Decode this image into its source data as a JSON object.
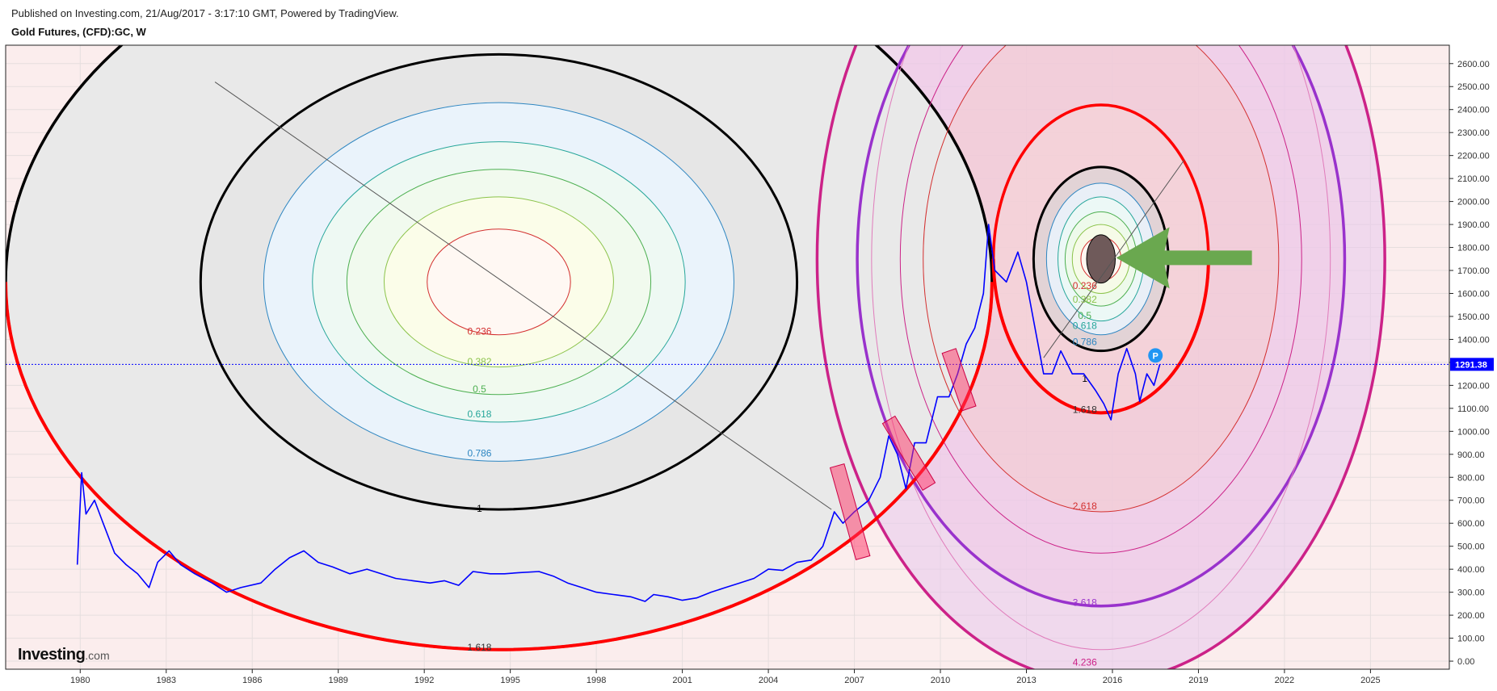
{
  "header": {
    "published": "Published on Investing.com, 21/Aug/2017 - 3:17:10 GMT, Powered by TradingView.",
    "title": "Gold Futures, (CFD):GC, W"
  },
  "logo": {
    "name": "Investing",
    "suffix": ".com"
  },
  "colors": {
    "price_line": "#0000ff",
    "arc_red": "#ff0000",
    "arc_black": "#000000",
    "arc_purple": "#9932cc",
    "arc_magenta": "#cc2288",
    "arrow_green": "#6aa84f",
    "last_price_bg": "#0000ff",
    "marker_blue": "#2196f3"
  },
  "chart_data": {
    "type": "line",
    "series": [
      {
        "points": [
          [
            1979.9,
            420
          ],
          [
            1980.05,
            820
          ],
          [
            1980.2,
            640
          ],
          [
            1980.5,
            700
          ],
          [
            1980.8,
            600
          ],
          [
            1981.2,
            470
          ],
          [
            1981.6,
            420
          ],
          [
            1982.0,
            380
          ],
          [
            1982.4,
            320
          ],
          [
            1982.7,
            430
          ],
          [
            1983.1,
            480
          ],
          [
            1983.5,
            420
          ],
          [
            1984.0,
            380
          ],
          [
            1984.6,
            340
          ],
          [
            1985.1,
            300
          ],
          [
            1985.6,
            320
          ],
          [
            1986.3,
            340
          ],
          [
            1986.8,
            400
          ],
          [
            1987.3,
            450
          ],
          [
            1987.8,
            480
          ],
          [
            1988.3,
            430
          ],
          [
            1988.8,
            410
          ],
          [
            1989.4,
            380
          ],
          [
            1990.0,
            400
          ],
          [
            1990.5,
            380
          ],
          [
            1991.0,
            360
          ],
          [
            1991.6,
            350
          ],
          [
            1992.2,
            340
          ],
          [
            1992.7,
            350
          ],
          [
            1993.2,
            330
          ],
          [
            1993.7,
            390
          ],
          [
            1994.3,
            380
          ],
          [
            1994.8,
            380
          ],
          [
            1995.3,
            385
          ],
          [
            1996.0,
            390
          ],
          [
            1996.5,
            370
          ],
          [
            1997.0,
            340
          ],
          [
            1997.5,
            320
          ],
          [
            1998.0,
            300
          ],
          [
            1998.6,
            290
          ],
          [
            1999.2,
            280
          ],
          [
            1999.7,
            260
          ],
          [
            2000.0,
            290
          ],
          [
            2000.5,
            280
          ],
          [
            2001.0,
            265
          ],
          [
            2001.5,
            275
          ],
          [
            2002.0,
            300
          ],
          [
            2002.5,
            320
          ],
          [
            2003.0,
            340
          ],
          [
            2003.5,
            360
          ],
          [
            2004.0,
            400
          ],
          [
            2004.5,
            395
          ],
          [
            2005.0,
            430
          ],
          [
            2005.5,
            440
          ],
          [
            2005.9,
            500
          ],
          [
            2006.3,
            650
          ],
          [
            2006.6,
            600
          ],
          [
            2007.0,
            650
          ],
          [
            2007.5,
            700
          ],
          [
            2007.9,
            800
          ],
          [
            2008.2,
            980
          ],
          [
            2008.5,
            900
          ],
          [
            2008.8,
            750
          ],
          [
            2009.1,
            950
          ],
          [
            2009.5,
            950
          ],
          [
            2009.9,
            1150
          ],
          [
            2010.3,
            1150
          ],
          [
            2010.6,
            1250
          ],
          [
            2010.9,
            1380
          ],
          [
            2011.2,
            1450
          ],
          [
            2011.5,
            1600
          ],
          [
            2011.68,
            1900
          ],
          [
            2011.9,
            1700
          ],
          [
            2012.3,
            1650
          ],
          [
            2012.7,
            1780
          ],
          [
            2013.0,
            1650
          ],
          [
            2013.3,
            1450
          ],
          [
            2013.6,
            1250
          ],
          [
            2013.9,
            1250
          ],
          [
            2014.2,
            1350
          ],
          [
            2014.6,
            1250
          ],
          [
            2015.0,
            1250
          ],
          [
            2015.4,
            1180
          ],
          [
            2015.7,
            1120
          ],
          [
            2015.95,
            1050
          ],
          [
            2016.2,
            1250
          ],
          [
            2016.5,
            1360
          ],
          [
            2016.8,
            1250
          ],
          [
            2016.95,
            1130
          ],
          [
            2017.2,
            1250
          ],
          [
            2017.45,
            1200
          ],
          [
            2017.65,
            1290
          ]
        ]
      }
    ],
    "ellipses": [
      {
        "center": [
          1994.6,
          1650
        ],
        "levels": [
          {
            "label": "0.236",
            "color": "#d32f2f",
            "rx_years": 2.5,
            "ry_price": 230
          },
          {
            "label": "0.382",
            "color": "#8bc34a",
            "rx_years": 4.0,
            "ry_price": 370
          },
          {
            "label": "0.5",
            "color": "#4caf50",
            "rx_years": 5.3,
            "ry_price": 490
          },
          {
            "label": "0.618",
            "color": "#26a69a",
            "rx_years": 6.5,
            "ry_price": 610
          },
          {
            "label": "0.786",
            "color": "#2e86c1",
            "rx_years": 8.2,
            "ry_price": 780
          },
          {
            "label": "1",
            "color": "#000000",
            "rx_years": 10.4,
            "ry_price": 990
          },
          {
            "label": "1.618",
            "color": "#ff0000",
            "rx_years": 17.2,
            "ry_price": 1600
          }
        ]
      },
      {
        "center": [
          2015.6,
          1750
        ],
        "levels": [
          {
            "label": "0.236",
            "color": "#d32f2f",
            "rx_years": 0.7,
            "ry_price": 95
          },
          {
            "label": "0.382",
            "color": "#8bc34a",
            "rx_years": 1.0,
            "ry_price": 150
          },
          {
            "label": "0.5",
            "color": "#4caf50",
            "rx_years": 1.25,
            "ry_price": 205
          },
          {
            "label": "0.618",
            "color": "#26a69a",
            "rx_years": 1.5,
            "ry_price": 270
          },
          {
            "label": "0.786",
            "color": "#2e86c1",
            "rx_years": 1.9,
            "ry_price": 330
          },
          {
            "label": "1",
            "color": "#000000",
            "rx_years": 2.35,
            "ry_price": 400
          },
          {
            "label": "1.618",
            "color": "#ff0000",
            "rx_years": 3.75,
            "ry_price": 670
          },
          {
            "label": "2.618",
            "color": "#d32f2f",
            "rx_years": 6.2,
            "ry_price": 1100
          },
          {
            "label": "3.618",
            "color": "#9932cc",
            "rx_years": 8.5,
            "ry_price": 1510
          },
          {
            "label": "4.236",
            "color": "#cc2288",
            "rx_years": 9.9,
            "ry_price": 1840
          }
        ]
      }
    ],
    "yaxis": {
      "ticks": [
        "0.00",
        "100.00",
        "200.00",
        "300.00",
        "400.00",
        "500.00",
        "600.00",
        "700.00",
        "800.00",
        "900.00",
        "1000.00",
        "1100.00",
        "1200.00",
        "1300.00",
        "1400.00",
        "1500.00",
        "1600.00",
        "1700.00",
        "1800.00",
        "1900.00",
        "2000.00",
        "2100.00",
        "2200.00",
        "2300.00",
        "2400.00",
        "2500.00",
        "2600.00"
      ],
      "range": [
        -35,
        2680
      ]
    },
    "xaxis": {
      "ticks": [
        "1980",
        "1983",
        "1986",
        "1989",
        "1992",
        "1995",
        "1998",
        "2001",
        "2004",
        "2007",
        "2010",
        "2013",
        "2016",
        "2019",
        "2022",
        "2025"
      ],
      "range": [
        1977.4,
        2027.75
      ]
    },
    "last_price": {
      "value": 1291.38,
      "label": "1291.38"
    },
    "marker": {
      "label": "P",
      "x": 2017.5,
      "y": 1330
    },
    "grid": true
  }
}
